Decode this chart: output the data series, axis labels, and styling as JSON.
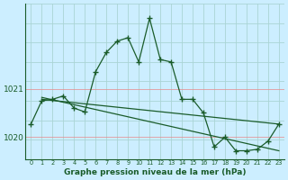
{
  "xlabel": "Graphe pression niveau de la mer (hPa)",
  "bg_color": "#cceeff",
  "grid_color": "#aad4d4",
  "line_color": "#1a5c2a",
  "x_ticks": [
    0,
    1,
    2,
    3,
    4,
    5,
    6,
    7,
    8,
    9,
    10,
    11,
    12,
    13,
    14,
    15,
    16,
    17,
    18,
    19,
    20,
    21,
    22,
    23
  ],
  "yticks": [
    1020,
    1021
  ],
  "ylim": [
    1019.55,
    1022.75
  ],
  "xlim": [
    -0.5,
    23.5
  ],
  "series_main": {
    "x": [
      0,
      1,
      2,
      3,
      4,
      5,
      6,
      7,
      8,
      9,
      10,
      11,
      12,
      13,
      14,
      15,
      16,
      17,
      18,
      19,
      20,
      21,
      22,
      23
    ],
    "y": [
      1020.27,
      1020.75,
      1020.78,
      1020.85,
      1020.6,
      1020.52,
      1021.35,
      1021.75,
      1021.98,
      1022.05,
      1021.55,
      1022.45,
      1021.6,
      1021.55,
      1020.78,
      1020.78,
      1020.5,
      1019.8,
      1020.0,
      1019.72,
      1019.72,
      1019.75,
      1019.92,
      1020.27
    ]
  },
  "trend1": {
    "x": [
      1,
      23
    ],
    "y": [
      1020.78,
      1020.27
    ]
  },
  "trend2": {
    "x": [
      1,
      23
    ],
    "y": [
      1020.82,
      1019.72
    ]
  }
}
